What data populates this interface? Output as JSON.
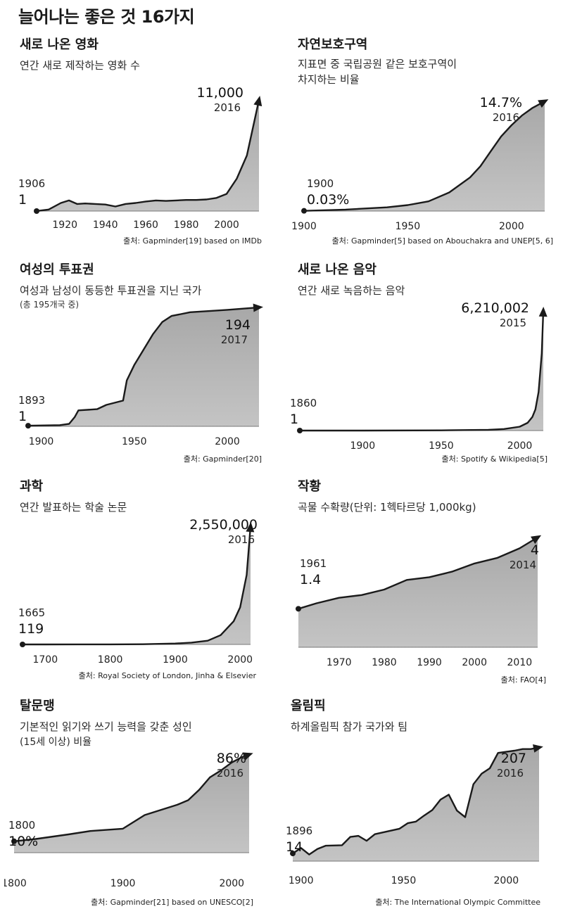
{
  "page_title": "늘어나는 좋은 것 16가지",
  "chart_data": [
    {
      "type": "area",
      "title": "새로 나온 영화",
      "subtitle": "연간 새로 제작하는 영화 수",
      "source": "출처: Gapminder[19] based on IMDb",
      "x": [
        1906,
        1912,
        1918,
        1922,
        1926,
        1930,
        1935,
        1940,
        1945,
        1950,
        1955,
        1960,
        1965,
        1970,
        1975,
        1980,
        1985,
        1990,
        1995,
        2000,
        2005,
        2010,
        2016
      ],
      "y": [
        1,
        150,
        800,
        1050,
        700,
        750,
        700,
        650,
        450,
        700,
        800,
        950,
        1050,
        1000,
        1050,
        1100,
        1100,
        1150,
        1300,
        1700,
        3200,
        5500,
        11000
      ],
      "xlim": [
        1906,
        2016
      ],
      "ylim": [
        0,
        11000
      ],
      "xticks": [
        1920,
        1940,
        1960,
        1980,
        2000
      ],
      "start": {
        "year": "1906",
        "value": "1"
      },
      "end": {
        "year": "2016",
        "value": "11,000"
      }
    },
    {
      "type": "area",
      "title": "자연보호구역",
      "subtitle": "지표면 중 국립공원 같은 보호구역이 차지하는 비율",
      "subtitle_lines": [
        "지표면 중 국립공원 같은 보호구역이",
        "차지하는 비율"
      ],
      "source": "출처: Gapminder[5] based on Abouchakra and UNEP[5, 6]",
      "x": [
        1900,
        1920,
        1940,
        1950,
        1960,
        1970,
        1980,
        1985,
        1990,
        1995,
        2000,
        2005,
        2010,
        2016
      ],
      "y": [
        0.03,
        0.2,
        0.5,
        0.8,
        1.3,
        2.5,
        4.5,
        6.0,
        8.0,
        10.0,
        11.5,
        12.8,
        13.8,
        14.7
      ],
      "xlim": [
        1900,
        2016
      ],
      "ylim": [
        0,
        14.7
      ],
      "xticks": [
        1900,
        1950,
        2000
      ],
      "start": {
        "year": "1900",
        "value": "0.03%"
      },
      "end": {
        "year": "2016",
        "value": "14.7%"
      }
    },
    {
      "type": "area",
      "title": "여성의 투표권",
      "subtitle": "여성과 남성이 동등한 투표권을 지닌 국가",
      "note": "(총 195개국 중)",
      "source": "출처: Gapminder[20]",
      "x": [
        1893,
        1910,
        1915,
        1918,
        1920,
        1930,
        1935,
        1944,
        1946,
        1950,
        1955,
        1960,
        1965,
        1970,
        1975,
        1980,
        2000,
        2017
      ],
      "y": [
        1,
        2,
        4,
        15,
        26,
        28,
        35,
        42,
        75,
        100,
        125,
        150,
        170,
        180,
        183,
        186,
        190,
        194
      ],
      "xlim": [
        1893,
        2017
      ],
      "ylim": [
        0,
        195
      ],
      "xticks": [
        1900,
        1950,
        2000
      ],
      "start": {
        "year": "1893",
        "value": "1"
      },
      "end": {
        "year": "2017",
        "value": "194"
      }
    },
    {
      "type": "area",
      "title": "새로 나온 음악",
      "subtitle": "연간 새로 녹음하는 음악",
      "source": "출처: Spotify & Wikipedia[5]",
      "x": [
        1860,
        1900,
        1950,
        1980,
        1990,
        2000,
        2005,
        2008,
        2010,
        2012,
        2014,
        2015
      ],
      "y": [
        1,
        100,
        10000,
        40000,
        80000,
        200000,
        400000,
        700000,
        1100000,
        2000000,
        4000000,
        6210002
      ],
      "xlim": [
        1860,
        2015
      ],
      "ylim": [
        0,
        6210002
      ],
      "xticks": [
        1900,
        1950,
        2000
      ],
      "start": {
        "year": "1860",
        "value": "1"
      },
      "end": {
        "year": "2015",
        "value": "6,210,002"
      }
    },
    {
      "type": "area",
      "title": "과학",
      "subtitle": "연간 발표하는 학술 논문",
      "source": "출처: Royal Society of London, Jinha & Elsevier",
      "x": [
        1665,
        1700,
        1750,
        1800,
        1850,
        1900,
        1925,
        1950,
        1970,
        1990,
        2000,
        2010,
        2016
      ],
      "y": [
        119,
        500,
        1000,
        2000,
        5000,
        20000,
        40000,
        80000,
        200000,
        500000,
        800000,
        1500000,
        2550000
      ],
      "xlim": [
        1665,
        2016
      ],
      "ylim": [
        0,
        2550000
      ],
      "xticks": [
        1700,
        1800,
        1900,
        2000
      ],
      "start": {
        "year": "1665",
        "value": "119"
      },
      "end": {
        "year": "2016",
        "value": "2,550,000"
      }
    },
    {
      "type": "area",
      "title": "작황",
      "subtitle": "곡물 수확량(단위: 1헥타르당 1,000kg)",
      "source": "출처: FAO[4]",
      "x": [
        1961,
        1965,
        1970,
        1975,
        1980,
        1985,
        1990,
        1995,
        2000,
        2005,
        2010,
        2014
      ],
      "y": [
        1.4,
        1.6,
        1.8,
        1.9,
        2.1,
        2.45,
        2.55,
        2.75,
        3.05,
        3.25,
        3.6,
        4.0
      ],
      "xlim": [
        1961,
        2014
      ],
      "ylim": [
        0,
        4.2
      ],
      "xticks": [
        1970,
        1980,
        1990,
        2000,
        2010
      ],
      "start": {
        "year": "1961",
        "value": "1.4"
      },
      "end": {
        "year": "2014",
        "value": "4"
      }
    },
    {
      "type": "area",
      "title": "탈문맹",
      "subtitle": "기본적인 읽기와 쓰기 능력을 갖춘 성인",
      "note": "(15세 이상) 비율",
      "source": "출처: Gapminder[21] based on UNESCO[2]",
      "x": [
        1800,
        1820,
        1850,
        1870,
        1900,
        1920,
        1930,
        1950,
        1960,
        1970,
        1980,
        1990,
        2000,
        2010,
        2016
      ],
      "y": [
        10,
        12,
        16,
        19,
        21,
        33,
        36,
        42,
        46,
        55,
        66,
        72,
        79,
        84,
        86
      ],
      "xlim": [
        1800,
        2016
      ],
      "ylim": [
        0,
        90
      ],
      "xticks": [
        1800,
        1900,
        2000
      ],
      "start": {
        "year": "1800",
        "value": "10%"
      },
      "end": {
        "year": "2016",
        "value": "86%"
      }
    },
    {
      "type": "area",
      "title": "올림픽",
      "subtitle": "하계올림픽 참가 국가와 팀",
      "source": "출처: The International Olympic Committee",
      "x": [
        1896,
        1900,
        1904,
        1908,
        1912,
        1920,
        1924,
        1928,
        1932,
        1936,
        1948,
        1952,
        1956,
        1960,
        1964,
        1968,
        1972,
        1976,
        1980,
        1984,
        1988,
        1992,
        1996,
        2000,
        2004,
        2008,
        2012,
        2016
      ],
      "y": [
        14,
        24,
        12,
        22,
        28,
        29,
        44,
        46,
        37,
        49,
        59,
        69,
        72,
        83,
        93,
        112,
        121,
        92,
        80,
        140,
        159,
        169,
        197,
        199,
        201,
        204,
        204,
        207
      ],
      "xlim": [
        1896,
        2016
      ],
      "ylim": [
        0,
        210
      ],
      "xticks": [
        1900,
        1950,
        2000
      ],
      "start": {
        "year": "1896",
        "value": "14"
      },
      "end": {
        "year": "2016",
        "value": "207"
      }
    }
  ]
}
